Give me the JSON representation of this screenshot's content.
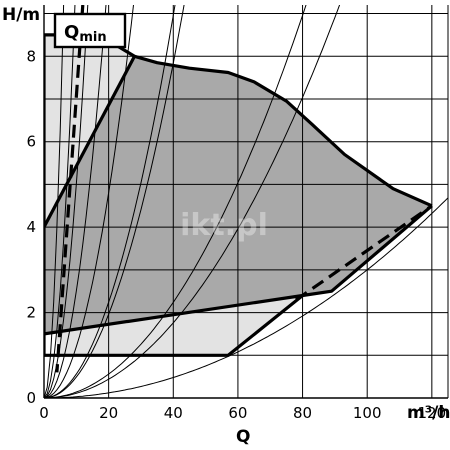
{
  "chart_data": {
    "type": "area",
    "title": "",
    "xlabel": "Q",
    "x_unit": "m³/h",
    "ylabel": "H/m",
    "xlim": [
      0,
      125
    ],
    "ylim": [
      0,
      9.2
    ],
    "x_ticks": [
      0,
      20,
      40,
      60,
      80,
      100,
      120
    ],
    "y_ticks": [
      0,
      2,
      4,
      6,
      8
    ],
    "grid": true,
    "annotation": {
      "main": "Q",
      "sub": "min"
    },
    "watermark": "ikt.pl",
    "colors": {
      "outer_region": "#e3e3e3",
      "inner_region": "#a9a9a9",
      "boundary": "#000000",
      "grid": "#000000"
    },
    "regions": [
      {
        "role": "outer-operating-range",
        "points": [
          [
            0,
            8.5
          ],
          [
            17,
            8.5
          ],
          [
            28,
            8.0
          ],
          [
            0,
            4.0
          ],
          [
            0,
            1.5
          ],
          [
            4,
            1.5
          ],
          [
            4,
            1.0
          ],
          [
            57,
            1.0
          ],
          [
            79,
            2.4
          ],
          [
            118,
            4.5
          ],
          [
            120,
            4.5
          ],
          [
            80,
            2.4
          ],
          [
            0,
            1.5
          ]
        ]
      },
      {
        "role": "inner-operating-range",
        "points": [
          [
            0,
            4.0
          ],
          [
            28,
            8.0
          ],
          [
            35,
            7.85
          ],
          [
            45,
            7.72
          ],
          [
            57,
            7.62
          ],
          [
            65,
            7.4
          ],
          [
            75,
            6.95
          ],
          [
            83,
            6.4
          ],
          [
            93,
            5.7
          ],
          [
            108,
            4.9
          ],
          [
            120,
            4.5
          ],
          [
            89,
            2.5
          ],
          [
            80,
            2.4
          ],
          [
            0,
            1.5
          ]
        ]
      }
    ],
    "boundary_lines": [
      {
        "role": "max-curve",
        "points": [
          [
            0,
            8.5
          ],
          [
            17,
            8.5
          ],
          [
            28,
            8.0
          ],
          [
            35,
            7.85
          ],
          [
            45,
            7.72
          ],
          [
            57,
            7.62
          ],
          [
            65,
            7.4
          ],
          [
            75,
            6.95
          ],
          [
            83,
            6.4
          ],
          [
            93,
            5.7
          ],
          [
            108,
            4.9
          ],
          [
            120,
            4.5
          ]
        ]
      },
      {
        "role": "left-boundary",
        "points": [
          [
            0,
            4.0
          ],
          [
            28,
            8.0
          ]
        ]
      },
      {
        "role": "min-curve-lower",
        "points": [
          [
            0,
            1.0
          ],
          [
            57,
            1.0
          ],
          [
            80,
            2.4
          ]
        ]
      },
      {
        "role": "min-curve-upper",
        "points": [
          [
            0,
            1.5
          ],
          [
            80,
            2.4
          ],
          [
            89,
            2.5
          ],
          [
            120,
            4.5
          ]
        ]
      },
      {
        "role": "left-axis-range",
        "points": [
          [
            0,
            1.0
          ],
          [
            0,
            8.5
          ]
        ]
      }
    ],
    "dashed_lines": [
      {
        "role": "q-min",
        "points": [
          [
            12,
            9.2
          ],
          [
            4,
            0.6
          ]
        ]
      },
      {
        "role": "limit",
        "points": [
          [
            78,
            2.3
          ],
          [
            120,
            4.5
          ]
        ]
      }
    ],
    "system_curves": [
      {
        "k": 0.0011,
        "x_max": 125
      },
      {
        "k": 0.0003,
        "x_max": 125
      },
      {
        "k": 0.0049,
        "x_max": 125
      },
      {
        "k": 0.0014,
        "x_max": 125
      },
      {
        "k": 0.0056,
        "x_max": 125
      },
      {
        "k": 0.012,
        "x_max": 125
      },
      {
        "k": 0.025,
        "x_max": 125
      },
      {
        "k": 0.05,
        "x_max": 125
      },
      {
        "k": 0.1,
        "x_max": 125
      },
      {
        "k": 0.25,
        "x_max": 125
      }
    ]
  }
}
